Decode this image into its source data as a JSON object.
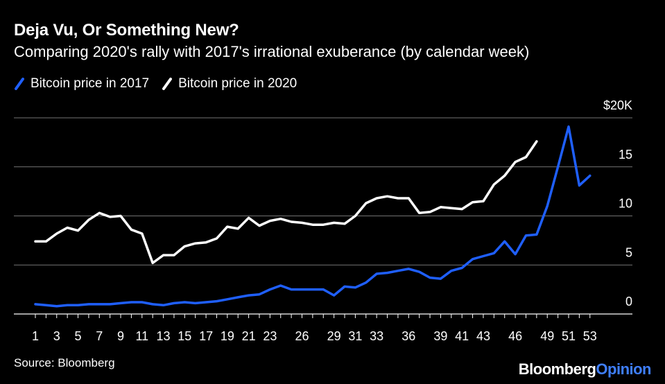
{
  "header": {
    "title": "Deja Vu, Or Something New?",
    "subtitle": "Comparing 2020's rally with 2017's irrational exuberance (by calendar week)"
  },
  "footer": {
    "source": "Source: Bloomberg",
    "brand_main": "Bloomberg",
    "brand_accent": "Opinion"
  },
  "colors": {
    "background": "#000000",
    "series_2017": "#1f5fff",
    "series_2020": "#ffffff",
    "grid": "#9a9a9a",
    "brand_accent": "#3f7fff"
  },
  "chart_data": {
    "type": "line",
    "title": "Deja Vu, Or Something New?",
    "subtitle": "Comparing 2020's rally with 2017's irrational exuberance (by calendar week)",
    "xlabel": "",
    "ylabel": "",
    "y_unit_label": "$20K",
    "xlim": [
      0,
      55
    ],
    "ylim": [
      0,
      20
    ],
    "y_ticks": [
      0,
      5,
      10,
      15,
      20
    ],
    "y_tick_labels": [
      "0",
      "5",
      "10",
      "15",
      "$20K"
    ],
    "x_ticks": [
      1,
      3,
      5,
      7,
      9,
      11,
      13,
      15,
      17,
      19,
      21,
      23,
      26,
      29,
      31,
      33,
      36,
      39,
      41,
      43,
      46,
      49,
      51,
      53
    ],
    "legend_position": "top-left",
    "grid": true,
    "series": [
      {
        "name": "Bitcoin price in 2017",
        "color": "#1f5fff",
        "x": [
          1,
          2,
          3,
          4,
          5,
          6,
          7,
          8,
          9,
          10,
          11,
          12,
          13,
          14,
          15,
          16,
          17,
          18,
          19,
          20,
          21,
          22,
          23,
          24,
          25,
          26,
          27,
          28,
          29,
          30,
          31,
          32,
          33,
          34,
          35,
          36,
          37,
          38,
          39,
          40,
          41,
          42,
          43,
          44,
          45,
          46,
          47,
          48,
          49,
          50,
          51,
          52,
          53
        ],
        "values": [
          1.0,
          0.9,
          0.8,
          0.9,
          0.9,
          1.0,
          1.0,
          1.0,
          1.1,
          1.2,
          1.2,
          1.0,
          0.9,
          1.1,
          1.2,
          1.1,
          1.2,
          1.3,
          1.5,
          1.7,
          1.9,
          2.0,
          2.5,
          2.9,
          2.5,
          2.5,
          2.5,
          2.5,
          1.9,
          2.8,
          2.7,
          3.2,
          4.1,
          4.2,
          4.4,
          4.6,
          4.3,
          3.7,
          3.6,
          4.4,
          4.7,
          5.6,
          5.9,
          6.2,
          7.4,
          6.1,
          8.0,
          8.1,
          11.0,
          15.0,
          19.1,
          13.1,
          14.1
        ]
      },
      {
        "name": "Bitcoin price in 2020",
        "color": "#ffffff",
        "x": [
          1,
          2,
          3,
          4,
          5,
          6,
          7,
          8,
          9,
          10,
          11,
          12,
          13,
          14,
          15,
          16,
          17,
          18,
          19,
          20,
          21,
          22,
          23,
          24,
          25,
          26,
          27,
          28,
          29,
          30,
          31,
          32,
          33,
          34,
          35,
          36,
          37,
          38,
          39,
          40,
          41,
          42,
          43,
          44,
          45,
          46,
          47,
          48
        ],
        "values": [
          7.4,
          7.4,
          8.2,
          8.8,
          8.5,
          9.6,
          10.3,
          9.9,
          10.0,
          8.6,
          8.2,
          5.2,
          6.0,
          6.0,
          6.9,
          7.2,
          7.3,
          7.7,
          8.9,
          8.7,
          9.8,
          9.0,
          9.5,
          9.7,
          9.4,
          9.3,
          9.1,
          9.1,
          9.3,
          9.2,
          10.0,
          11.3,
          11.8,
          12.0,
          11.8,
          11.8,
          10.3,
          10.4,
          10.9,
          10.8,
          10.7,
          11.4,
          11.5,
          13.2,
          14.1,
          15.5,
          16.0,
          17.6
        ]
      }
    ]
  }
}
